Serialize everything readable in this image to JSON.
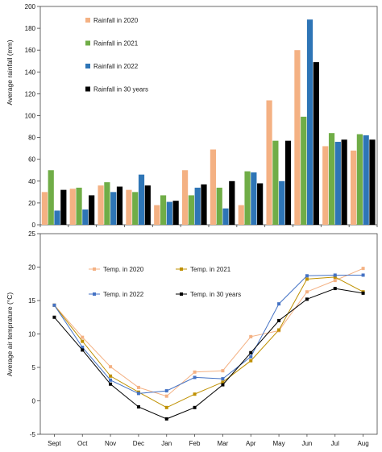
{
  "chart_data": [
    {
      "type": "bar",
      "ylabel": "Average rainfall (mm)",
      "ylim": [
        0,
        200
      ],
      "yticks": [
        0,
        20,
        40,
        60,
        80,
        100,
        120,
        140,
        160,
        180,
        200
      ],
      "categories": [
        "Sept",
        "Oct",
        "Nov",
        "Dec",
        "Jan",
        "Feb",
        "Mar",
        "Apr",
        "May",
        "Jun",
        "Jul",
        "Aug"
      ],
      "grid": false,
      "legend": "top-left",
      "series": [
        {
          "name": "Rainfall in 2020",
          "color": "#f4b183",
          "values": [
            30,
            33,
            36,
            32,
            18,
            50,
            69,
            18,
            114,
            160,
            72,
            68
          ]
        },
        {
          "name": "Rainfall in 2021",
          "color": "#70ad47",
          "values": [
            50,
            34,
            39,
            30,
            27,
            27,
            34,
            49,
            77,
            99,
            84,
            83
          ]
        },
        {
          "name": "Rainfall in 2022",
          "color": "#2e75b6",
          "values": [
            13,
            14,
            30,
            46,
            21,
            34,
            15,
            48,
            40,
            188,
            76,
            82
          ]
        },
        {
          "name": "Rainfall in 30 years",
          "color": "#000000",
          "values": [
            32,
            27,
            35,
            36,
            22,
            37,
            40,
            38,
            77,
            149,
            78,
            78
          ]
        }
      ]
    },
    {
      "type": "line",
      "ylabel": "Average air temprature (°C)",
      "ylim": [
        -5,
        25
      ],
      "yticks": [
        -5,
        0,
        5,
        10,
        15,
        20,
        25
      ],
      "categories": [
        "Sept",
        "Oct",
        "Nov",
        "Dec",
        "Jan",
        "Feb",
        "Mar",
        "Apr",
        "May",
        "Jun",
        "Jul",
        "Aug"
      ],
      "grid": false,
      "legend": "top-left",
      "series": [
        {
          "name": "Temp. in 2020",
          "color": "#f4b183",
          "values": [
            14.3,
            9.5,
            5.1,
            2.0,
            0.7,
            4.3,
            4.5,
            9.6,
            10.5,
            16.3,
            18.0,
            19.8
          ]
        },
        {
          "name": "Temp. in 2021",
          "color": "#bf9000",
          "values": [
            14.3,
            8.9,
            3.7,
            1.3,
            -1.0,
            1.0,
            2.8,
            6.0,
            10.6,
            18.2,
            18.5,
            16.3
          ]
        },
        {
          "name": "Temp. in 2022",
          "color": "#4472c4",
          "values": [
            14.3,
            8.0,
            3.1,
            1.1,
            1.5,
            3.5,
            3.3,
            6.6,
            14.5,
            18.7,
            18.8,
            18.8
          ]
        },
        {
          "name": "Temp. in 30 years",
          "color": "#000000",
          "values": [
            12.5,
            7.6,
            2.5,
            -0.9,
            -2.7,
            -1.0,
            2.4,
            7.2,
            12.0,
            15.2,
            16.8,
            16.1
          ]
        }
      ]
    }
  ]
}
